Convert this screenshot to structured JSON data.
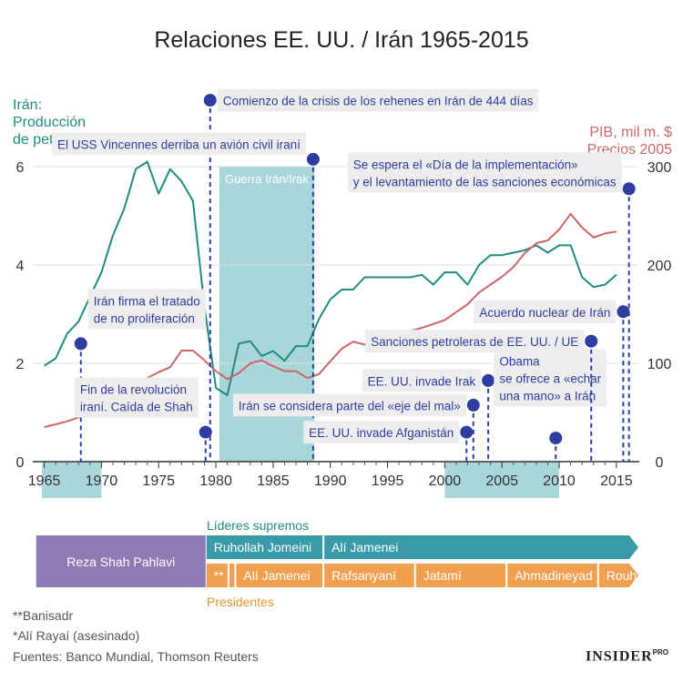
{
  "title": "Relaciones EE. UU. / Irán 1965-2015",
  "left_axis_label": [
    "Irán:",
    "Producción",
    "de petróleo, m bpd"
  ],
  "right_axis_label": [
    "PIB, mil m. $",
    "Precios 2005"
  ],
  "footnotes": [
    "**Banisadr",
    "*Alí Rayaí (asesinado)",
    "Fuentes: Banco Mundial, Thomson Reuters"
  ],
  "brand": "INSIDER",
  "brand_sup": "PRO",
  "colors": {
    "oil": "#1f8c80",
    "gdp": "#cc6666",
    "event": "#2d3da0",
    "shade": "#a8d6da",
    "leaders": "#3a9ba8",
    "presidents": "#ef9f4e",
    "shah": "#8f7ab4"
  },
  "chart_data": {
    "type": "line",
    "x_range": [
      1964,
      2017
    ],
    "x_ticks": [
      1965,
      1970,
      1975,
      1980,
      1985,
      1990,
      1995,
      2000,
      2005,
      2010,
      2015
    ],
    "ylim_left": [
      0,
      6
    ],
    "ylim_right": [
      0,
      300
    ],
    "y_ticks_left": [
      0,
      2,
      4,
      6
    ],
    "y_ticks_right": [
      0,
      100,
      200,
      300
    ],
    "grid": true,
    "shaded_periods": [
      {
        "label": "",
        "start": 1964.8,
        "end": 1970.0
      },
      {
        "label": "Guerra Irán/Irak",
        "start": 1980.3,
        "end": 1988.6
      },
      {
        "label": "",
        "start": 2000.0,
        "end": 2010.0
      }
    ],
    "series": [
      {
        "axis": "left",
        "x": [
          1965,
          1966,
          1967,
          1968,
          1969,
          1970,
          1971,
          1972,
          1973,
          1974,
          1975,
          1976,
          1977,
          1978,
          1979,
          1980,
          1981,
          1982,
          1983,
          1984,
          1985,
          1986,
          1987,
          1988,
          1989,
          1990,
          1991,
          1992,
          1993,
          1994,
          1995,
          1996,
          1997,
          1998,
          1999,
          2000,
          2001,
          2002,
          2003,
          2004,
          2005,
          2006,
          2007,
          2008,
          2009,
          2010,
          2011,
          2012,
          2013,
          2014,
          2015
        ],
        "values": [
          1.95,
          2.1,
          2.6,
          2.85,
          3.35,
          3.85,
          4.6,
          5.15,
          5.95,
          6.1,
          5.45,
          5.95,
          5.7,
          5.3,
          3.15,
          1.5,
          1.35,
          2.4,
          2.45,
          2.15,
          2.25,
          2.05,
          2.35,
          2.35,
          2.9,
          3.3,
          3.5,
          3.5,
          3.75,
          3.75,
          3.75,
          3.75,
          3.75,
          3.8,
          3.6,
          3.85,
          3.85,
          3.6,
          4.0,
          4.2,
          4.2,
          4.25,
          4.3,
          4.4,
          4.25,
          4.4,
          4.4,
          3.75,
          3.55,
          3.6,
          3.8
        ]
      },
      {
        "axis": "right",
        "x": [
          1965,
          1966,
          1967,
          1968,
          1969,
          1970,
          1971,
          1972,
          1973,
          1974,
          1975,
          1976,
          1977,
          1978,
          1979,
          1980,
          1981,
          1982,
          1983,
          1984,
          1985,
          1986,
          1987,
          1988,
          1989,
          1990,
          1991,
          1992,
          1993,
          1994,
          1995,
          1996,
          1997,
          1998,
          1999,
          2000,
          2001,
          2002,
          2003,
          2004,
          2005,
          2006,
          2007,
          2008,
          2009,
          2010,
          2011,
          2012,
          2013,
          2014,
          2015
        ],
        "values": [
          35,
          38,
          41,
          45,
          49,
          55,
          62,
          69,
          78,
          85,
          91,
          96,
          113,
          113,
          103,
          92,
          84,
          90,
          100,
          103,
          97,
          92,
          92,
          85,
          89,
          102,
          115,
          122,
          119,
          120,
          128,
          131,
          133,
          136,
          140,
          144,
          152,
          160,
          172,
          180,
          188,
          198,
          212,
          222,
          225,
          236,
          252,
          238,
          228,
          232,
          234
        ]
      }
    ],
    "events": [
      {
        "year": 1968.2,
        "level": 2.4,
        "text": [
          "Irán firma el tratado",
          "de no proliferación"
        ]
      },
      {
        "year": 1979.1,
        "level": 0.6,
        "text": [
          "Fin de la revolución",
          "iraní. Caída de Shah"
        ]
      },
      {
        "year": 1979.5,
        "level": 7.35,
        "text": [
          "Comienzo de la crisis de los rehenes en Irán de 444 días"
        ]
      },
      {
        "year": 1988.5,
        "level": 6.15,
        "text": [
          "El USS Vincennes derriba un avión civil iraní"
        ]
      },
      {
        "year": 2001.9,
        "level": 0.6,
        "text": [
          "EE. UU. invade Afganistán"
        ]
      },
      {
        "year": 2002.5,
        "level": 1.15,
        "text": [
          "Irán se considera parte del «eje del mal»"
        ]
      },
      {
        "year": 2003.8,
        "level": 1.65,
        "text": [
          "EE. UU. invade Irak"
        ]
      },
      {
        "year": 2009.7,
        "level": 0.48,
        "text": [
          "Obama",
          "se ofrece a «echar",
          "una mano» a Irán"
        ]
      },
      {
        "year": 2012.8,
        "level": 2.45,
        "text": [
          "Sanciones petroleras de EE. UU. / UE"
        ]
      },
      {
        "year": 2015.6,
        "level": 3.05,
        "text": [
          "Acuerdo nuclear de Irán"
        ]
      },
      {
        "year": 2016.1,
        "level": 5.55,
        "text": [
          "Se espera el «Día de la implementación»",
          "y el levantamiento de las sanciones económicas"
        ]
      }
    ]
  },
  "timeline": {
    "leaders_label": "Líderes supremos",
    "presidents_label": "Presidentes",
    "shah": {
      "name": "Reza Shah Pahlavi",
      "start": 1964.3,
      "end": 1979.1
    },
    "leaders": [
      {
        "name": "Ruhollah Jomeini",
        "start": 1979.1,
        "end": 1989.4
      },
      {
        "name": "Alí Jamenei",
        "start": 1989.4,
        "end": 2017.0
      }
    ],
    "presidents": [
      {
        "name": "**",
        "start": 1979.1,
        "end": 1981.1
      },
      {
        "name": "*",
        "start": 1981.1,
        "end": 1981.7
      },
      {
        "name": "Alí Jamenei",
        "start": 1981.7,
        "end": 1989.4
      },
      {
        "name": "Rafsanyaní",
        "start": 1989.4,
        "end": 1997.4
      },
      {
        "name": "Jatamí",
        "start": 1997.4,
        "end": 2005.4
      },
      {
        "name": "Ahmadineyad",
        "start": 2005.4,
        "end": 2013.4
      },
      {
        "name": "Rouhaní",
        "start": 2013.4,
        "end": 2017.0
      }
    ]
  }
}
